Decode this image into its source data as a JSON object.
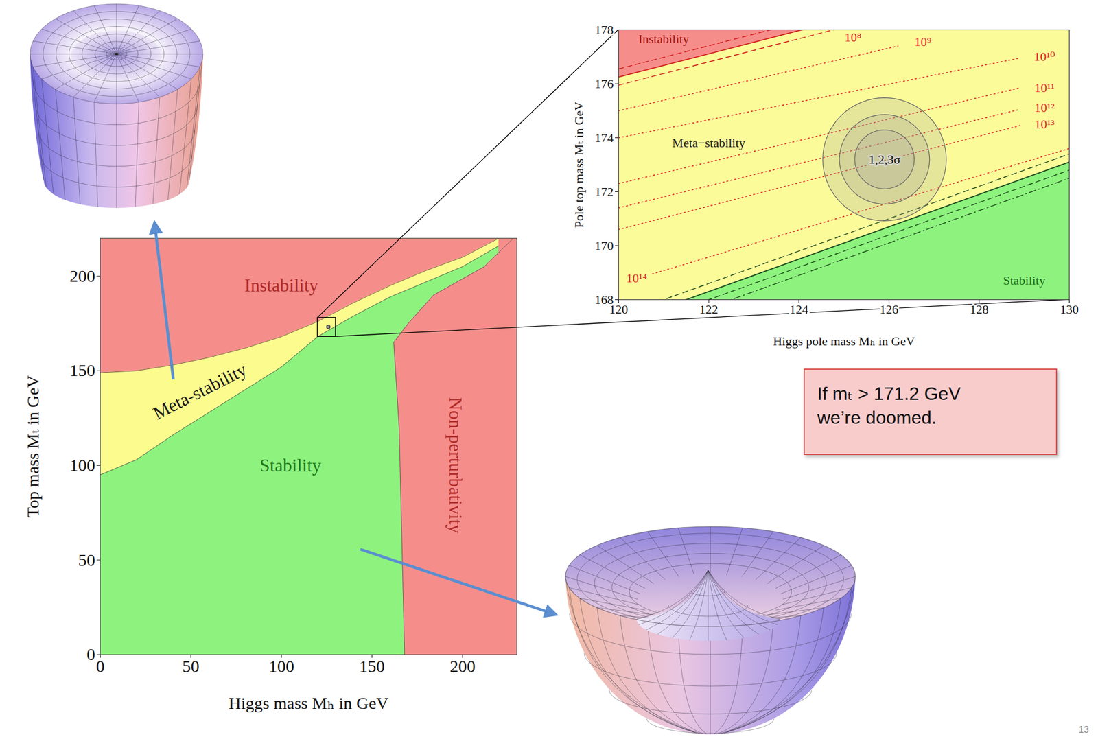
{
  "chart_data": [
    {
      "type": "region",
      "x_label": "Higgs mass Mₕ in GeV",
      "y_label": "Top mass Mₜ in GeV",
      "xlim": [
        0,
        230
      ],
      "xticks": [
        0,
        50,
        100,
        150,
        200
      ],
      "ylim": [
        0,
        220
      ],
      "yticks": [
        0,
        50,
        100,
        150,
        200
      ],
      "regions": [
        {
          "name": "Instability",
          "color": "#f58e8b",
          "at": [
            100,
            195
          ]
        },
        {
          "name": "Meta-stability",
          "color": "#fbfb8e",
          "at": [
            55,
            139
          ]
        },
        {
          "name": "Stability",
          "color": "#8ef37e",
          "at": [
            105,
            100
          ]
        },
        {
          "name": "Non-perturbativity",
          "color": "#f58e8b",
          "at": [
            196,
            100
          ]
        }
      ],
      "boundaries": {
        "x": [
          0,
          20,
          40,
          60,
          80,
          100,
          120,
          140,
          160,
          180,
          200,
          220
        ],
        "stability": [
          95,
          103,
          116,
          128,
          140,
          152,
          168,
          179,
          189,
          197,
          205,
          216
        ],
        "meta_stability": [
          149,
          150,
          153,
          157,
          162,
          168,
          176,
          186,
          195,
          203,
          210,
          220
        ]
      },
      "non_perturbativity_boundary": {
        "y": [
          0,
          40,
          80,
          120,
          150,
          165,
          175,
          190,
          205,
          220
        ],
        "x": [
          168,
          167,
          166,
          165,
          163,
          162,
          170,
          184,
          212,
          228
        ]
      }
    },
    {
      "type": "region",
      "x_label": "Higgs pole mass Mₕ in GeV",
      "y_label": "Pole top mass Mₜ in GeV",
      "xlim": [
        120,
        130
      ],
      "xticks": [
        120,
        122,
        124,
        126,
        128,
        130
      ],
      "ylim": [
        168,
        178
      ],
      "yticks": [
        168,
        170,
        172,
        174,
        176,
        178
      ],
      "regions": [
        {
          "name": "Instability",
          "color": "#f58e8b",
          "at": [
            121.0,
            177.65
          ]
        },
        {
          "name": "Meta−stability",
          "color": "#fbfb9a",
          "at": [
            122.0,
            173.8
          ]
        },
        {
          "name": "Stability",
          "color": "#8ef37e",
          "at": [
            129.0,
            168.7
          ]
        }
      ],
      "instability_boundary": {
        "name": "10⁸",
        "x": [
          120,
          130
        ],
        "values": [
          176.25,
          180.55
        ],
        "color": "#d01818",
        "line_style": "solid",
        "label_at": [
          125.2,
          177.72
        ]
      },
      "instability_band": [
        {
          "x": [
            120,
            130
          ],
          "values": [
            176.55,
            180.85
          ],
          "color": "#d01818",
          "line_style": "dashed"
        },
        {
          "x": [
            120,
            130
          ],
          "values": [
            175.95,
            180.25
          ],
          "color": "#d01818",
          "line_style": "dashed"
        }
      ],
      "stability_boundary": {
        "x": [
          120,
          130
        ],
        "values": [
          167.1,
          173.1
        ],
        "color": "#1e4a1e",
        "line_style": "solid"
      },
      "stability_band": [
        {
          "x": [
            120,
            130
          ],
          "values": [
            167.4,
            173.4
          ],
          "color": "#1e4a1e",
          "line_style": "dashed"
        },
        {
          "x": [
            120,
            130
          ],
          "values": [
            166.8,
            172.8
          ],
          "color": "#1e4a1e",
          "line_style": "dashed"
        },
        {
          "x": [
            120,
            130
          ],
          "values": [
            166.5,
            172.5
          ],
          "color": "#1e4a1e",
          "line_style": "dashdot"
        }
      ],
      "scale_lines": [
        {
          "name": "10⁹",
          "x": [
            120,
            126.2
          ],
          "values": [
            175.0,
            177.4
          ],
          "color": "#e02828",
          "line_style": "dotted",
          "label_at": [
            126.75,
            177.55
          ]
        },
        {
          "name": "10¹⁰",
          "x": [
            120,
            128.9
          ],
          "values": [
            174.0,
            176.95
          ],
          "color": "#e02828",
          "line_style": "dotted",
          "label_at": [
            129.45,
            177.0
          ]
        },
        {
          "name": "10¹¹",
          "x": [
            120,
            128.9
          ],
          "values": [
            172.3,
            175.85
          ],
          "color": "#e02828",
          "line_style": "dotted",
          "label_at": [
            129.45,
            175.85
          ]
        },
        {
          "name": "10¹²",
          "x": [
            120,
            128.9
          ],
          "values": [
            171.4,
            175.05
          ],
          "color": "#e02828",
          "line_style": "dotted",
          "label_at": [
            129.45,
            175.1
          ]
        },
        {
          "name": "10¹³",
          "x": [
            120,
            128.9
          ],
          "values": [
            170.6,
            174.45
          ],
          "color": "#e02828",
          "line_style": "dotted",
          "label_at": [
            129.45,
            174.5
          ]
        },
        {
          "name": "10¹⁴",
          "x": [
            120.75,
            130
          ],
          "values": [
            168.95,
            173.6
          ],
          "color": "#e02828",
          "line_style": "dotted",
          "label_at": [
            120.4,
            168.8
          ]
        }
      ],
      "central_value": [
        125.9,
        173.2
      ],
      "sigma_ellipses": [
        {
          "dx": 0.66,
          "dy": 1.09
        },
        {
          "dx": 1.0,
          "dy": 1.66
        },
        {
          "dx": 1.37,
          "dy": 2.28
        }
      ],
      "sigma_label": "1,2,3σ"
    }
  ],
  "annotation": [
    "If mₜ > 171.2 GeV",
    "we’re doomed."
  ],
  "page_number": "13"
}
